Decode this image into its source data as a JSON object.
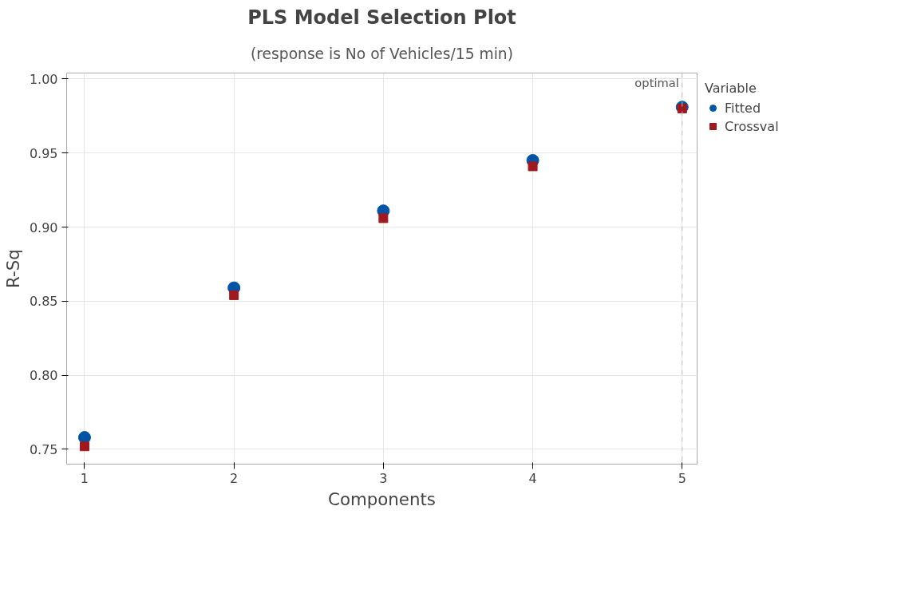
{
  "chart_data": {
    "type": "scatter",
    "title": "PLS Model Selection Plot",
    "subtitle": "(response is No of Vehicles/15 min)",
    "xlabel": "Components",
    "ylabel": "R-Sq",
    "legend_title": "Variable",
    "x": [
      1,
      2,
      3,
      4,
      5
    ],
    "series": [
      {
        "name": "Fitted",
        "color": "#0054a6",
        "marker": "circle",
        "values": [
          0.758,
          0.859,
          0.911,
          0.945,
          0.981
        ]
      },
      {
        "name": "Crossval",
        "color": "#a0191e",
        "marker": "square",
        "values": [
          0.752,
          0.854,
          0.906,
          0.941,
          0.98
        ]
      }
    ],
    "xlim": [
      0.88,
      5.1
    ],
    "xticks": [
      1,
      2,
      3,
      4,
      5
    ],
    "ylim": [
      0.74,
      1.004
    ],
    "yticks": [
      {
        "value": 0.75,
        "label": "0.75"
      },
      {
        "value": 0.8,
        "label": "0.80"
      },
      {
        "value": 0.85,
        "label": "0.85"
      },
      {
        "value": 0.9,
        "label": "0.90"
      },
      {
        "value": 0.95,
        "label": "0.95"
      },
      {
        "value": 1.0,
        "label": "1.00"
      }
    ],
    "ref_lines": [
      {
        "axis": "x",
        "value": 5,
        "label": "optimal",
        "color": "#bbbbbb",
        "line_style": "dashed"
      }
    ],
    "grid": true,
    "legend": "right"
  }
}
